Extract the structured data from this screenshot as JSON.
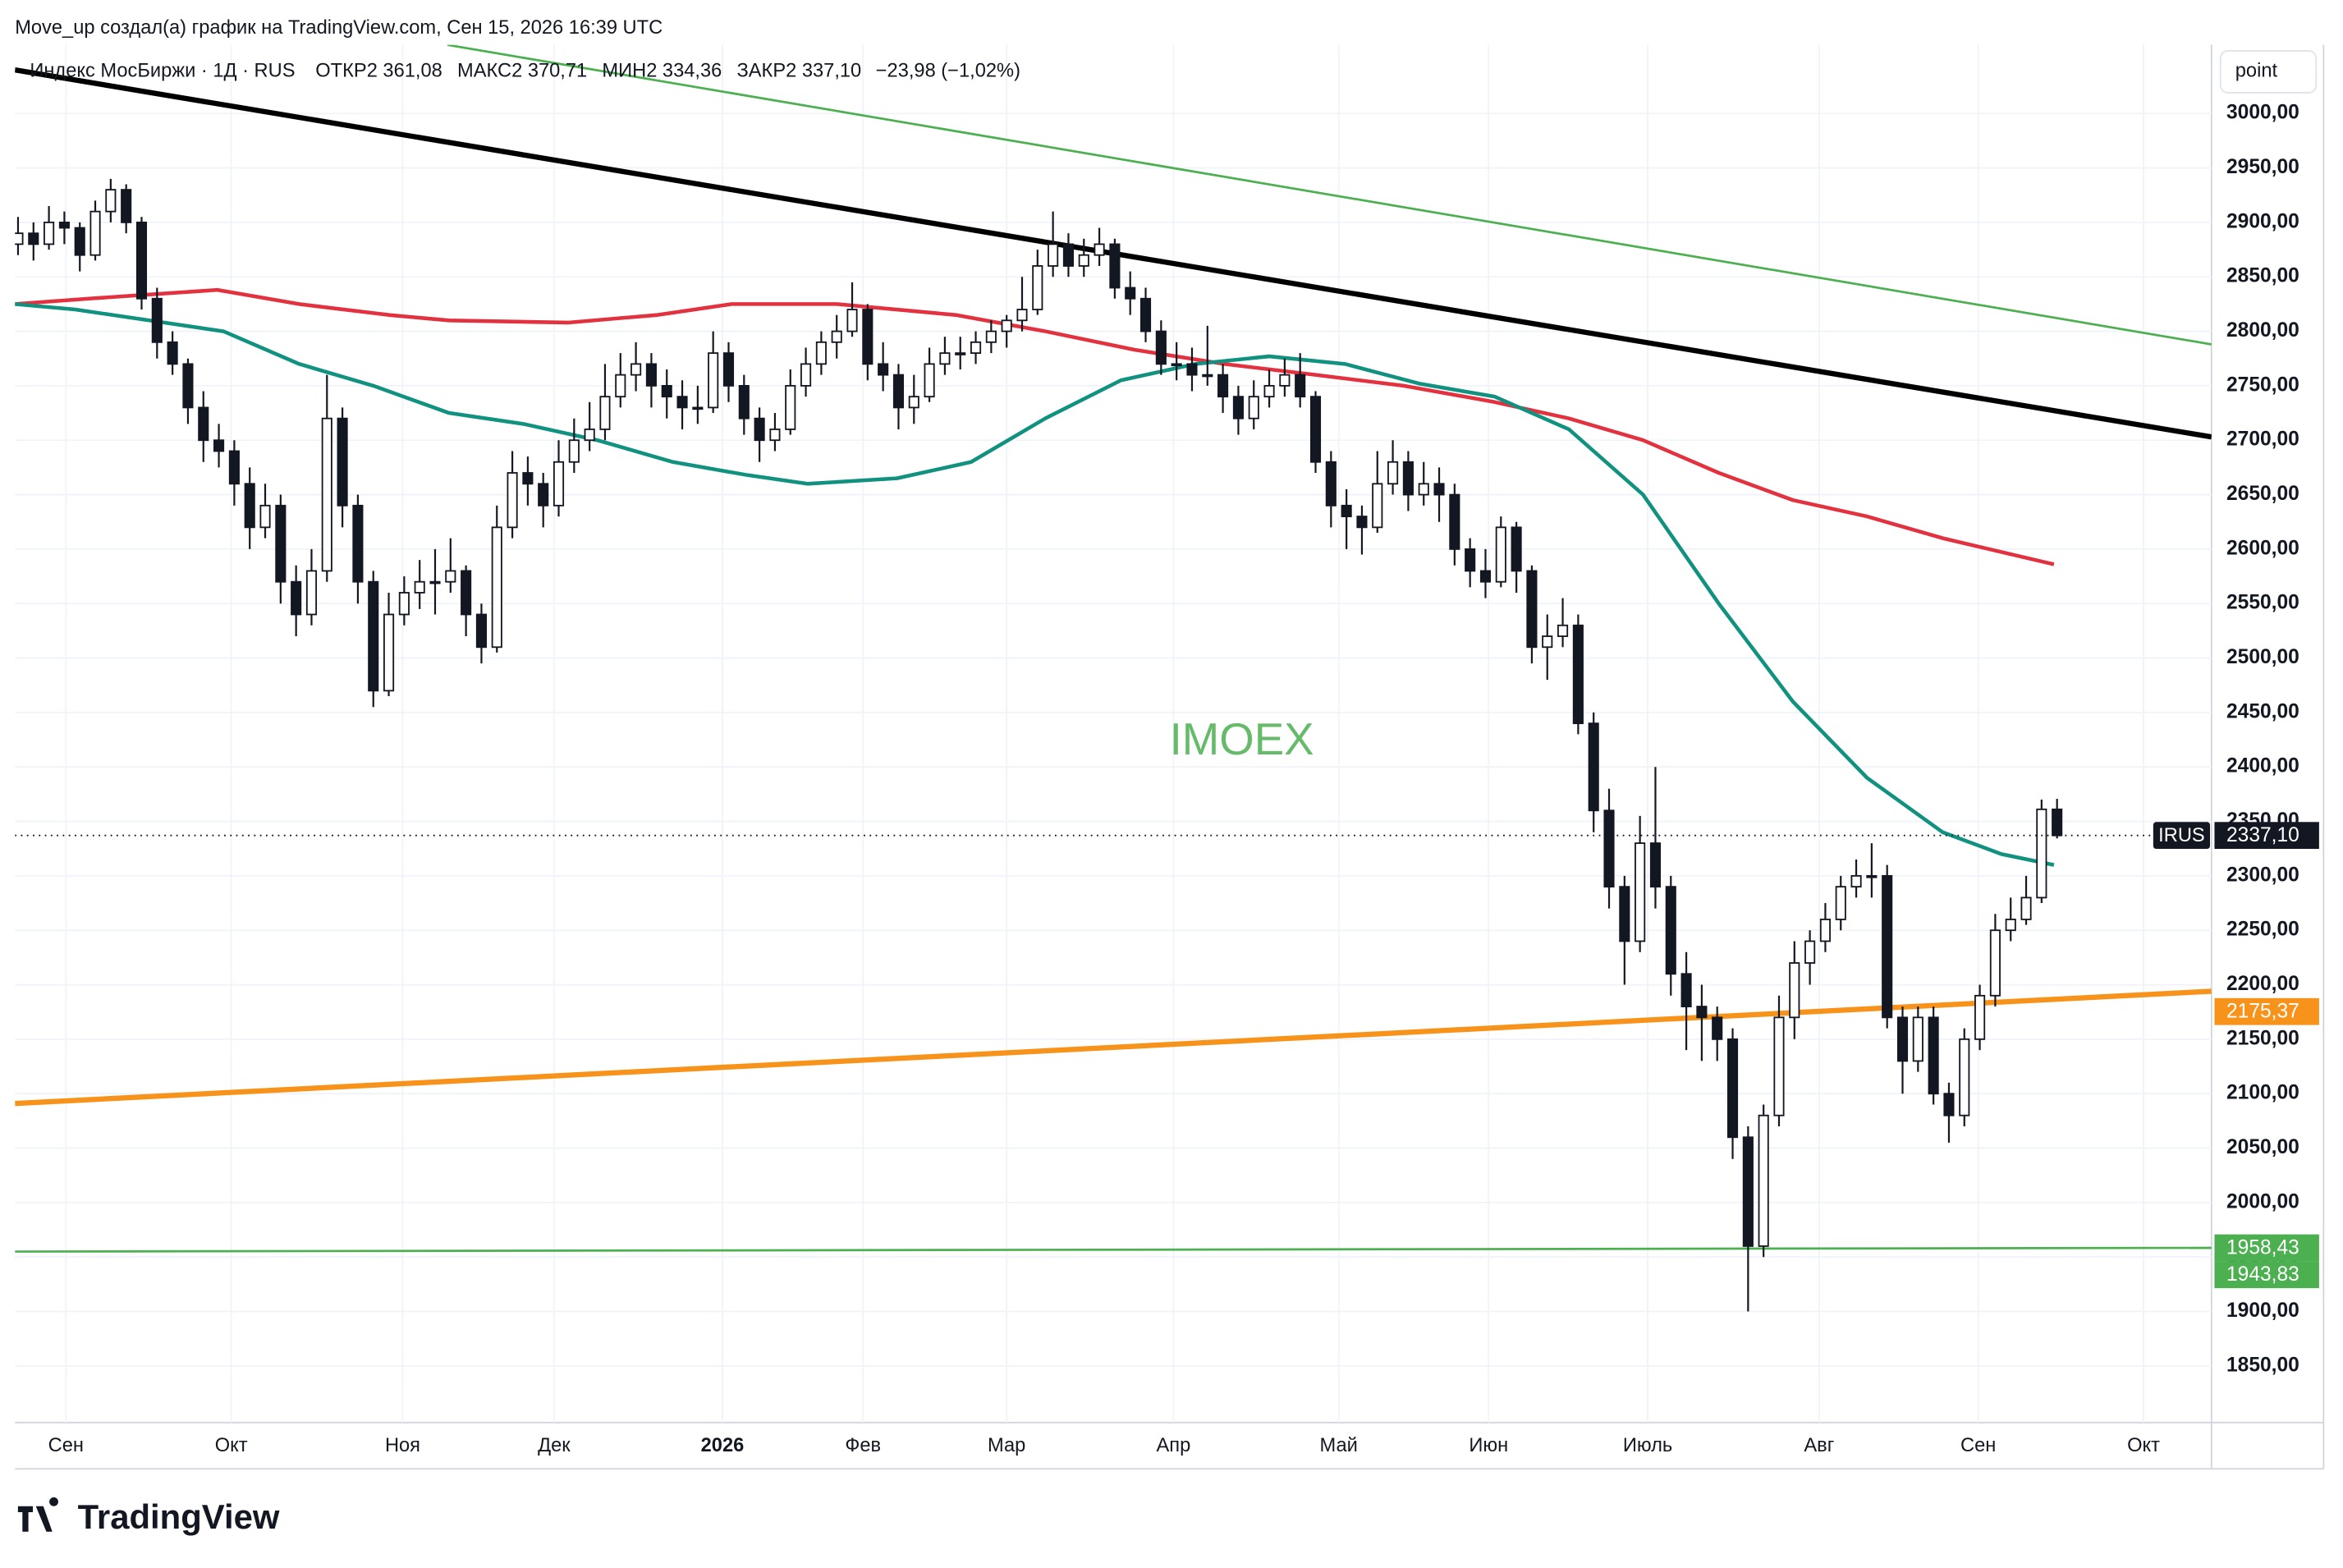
{
  "header": {
    "credit": "Move_up создал(а) график на TradingView.com, Сен 15, 2026 16:39 UTC",
    "symbol": "Индекс МосБиржи · 1Д · RUS",
    "fields": [
      {
        "label": "ОТКР",
        "value": "2 361,08"
      },
      {
        "label": "МАКС",
        "value": "2 370,71"
      },
      {
        "label": "МИН",
        "value": "2 334,36"
      },
      {
        "label": "ЗАКР",
        "value": "2 337,10"
      }
    ],
    "change": "−23,98 (−1,02%)",
    "scale_button": "point",
    "logo": "TradingView"
  },
  "chart_data": {
    "type": "candlestick",
    "watermark": "IMOEX",
    "up_color": "#ffffff",
    "down_color": "#131722",
    "grid": true,
    "xlim": [
      -0.2,
      142
    ],
    "ylim": [
      1798,
      3063
    ],
    "xticks": [
      {
        "value": 3.1,
        "label": "Сен"
      },
      {
        "value": 13.8,
        "label": "Окт"
      },
      {
        "value": 24.9,
        "label": "Ноя"
      },
      {
        "value": 34.7,
        "label": "Дек"
      },
      {
        "value": 45.6,
        "label": "2026"
      },
      {
        "value": 54.7,
        "label": "Фев"
      },
      {
        "value": 64.0,
        "label": "Мар"
      },
      {
        "value": 74.8,
        "label": "Апр"
      },
      {
        "value": 85.5,
        "label": "Май"
      },
      {
        "value": 95.2,
        "label": "Июн"
      },
      {
        "value": 105.5,
        "label": "Июль"
      },
      {
        "value": 116.6,
        "label": "Авг"
      },
      {
        "value": 126.9,
        "label": "Сен"
      },
      {
        "value": 137.6,
        "label": "Окт"
      }
    ],
    "yticks": [
      {
        "value": 1850,
        "label": "1850,00"
      },
      {
        "value": 1900,
        "label": "1900,00"
      },
      {
        "value": 1950,
        "label": "1950,00"
      },
      {
        "value": 2000,
        "label": "2000,00"
      },
      {
        "value": 2050,
        "label": "2050,00"
      },
      {
        "value": 2100,
        "label": "2100,00"
      },
      {
        "value": 2150,
        "label": "2150,00"
      },
      {
        "value": 2200,
        "label": "2200,00"
      },
      {
        "value": 2250,
        "label": "2250,00"
      },
      {
        "value": 2300,
        "label": "2300,00"
      },
      {
        "value": 2350,
        "label": "2350,00"
      },
      {
        "value": 2400,
        "label": "2400,00"
      },
      {
        "value": 2450,
        "label": "2450,00"
      },
      {
        "value": 2500,
        "label": "2500,00"
      },
      {
        "value": 2550,
        "label": "2550,00"
      },
      {
        "value": 2600,
        "label": "2600,00"
      },
      {
        "value": 2650,
        "label": "2650,00"
      },
      {
        "value": 2700,
        "label": "2700,00"
      },
      {
        "value": 2750,
        "label": "2750,00"
      },
      {
        "value": 2800,
        "label": "2800,00"
      },
      {
        "value": 2850,
        "label": "2850,00"
      },
      {
        "value": 2900,
        "label": "2900,00"
      },
      {
        "value": 2950,
        "label": "2950,00"
      },
      {
        "value": 3000,
        "label": "3000,00"
      }
    ],
    "candles": [
      [
        2880,
        2905,
        2870,
        2890
      ],
      [
        2890,
        2900,
        2865,
        2880
      ],
      [
        2880,
        2915,
        2875,
        2900
      ],
      [
        2900,
        2910,
        2880,
        2895
      ],
      [
        2895,
        2900,
        2855,
        2870
      ],
      [
        2870,
        2920,
        2865,
        2910
      ],
      [
        2910,
        2940,
        2900,
        2930
      ],
      [
        2930,
        2935,
        2890,
        2900
      ],
      [
        2900,
        2905,
        2820,
        2830
      ],
      [
        2830,
        2840,
        2775,
        2790
      ],
      [
        2790,
        2800,
        2760,
        2770
      ],
      [
        2770,
        2775,
        2715,
        2730
      ],
      [
        2730,
        2745,
        2680,
        2700
      ],
      [
        2700,
        2715,
        2675,
        2690
      ],
      [
        2690,
        2700,
        2640,
        2660
      ],
      [
        2660,
        2675,
        2600,
        2620
      ],
      [
        2620,
        2660,
        2610,
        2640
      ],
      [
        2640,
        2650,
        2550,
        2570
      ],
      [
        2570,
        2585,
        2520,
        2540
      ],
      [
        2540,
        2600,
        2530,
        2580
      ],
      [
        2580,
        2760,
        2570,
        2720
      ],
      [
        2720,
        2730,
        2620,
        2640
      ],
      [
        2640,
        2650,
        2550,
        2570
      ],
      [
        2570,
        2580,
        2455,
        2470
      ],
      [
        2470,
        2560,
        2465,
        2540
      ],
      [
        2540,
        2575,
        2530,
        2560
      ],
      [
        2560,
        2590,
        2545,
        2570
      ],
      [
        2570,
        2600,
        2540,
        2570
      ],
      [
        2570,
        2610,
        2560,
        2580
      ],
      [
        2580,
        2585,
        2520,
        2540
      ],
      [
        2540,
        2550,
        2495,
        2510
      ],
      [
        2510,
        2640,
        2505,
        2620
      ],
      [
        2620,
        2690,
        2610,
        2670
      ],
      [
        2670,
        2685,
        2640,
        2660
      ],
      [
        2660,
        2670,
        2620,
        2640
      ],
      [
        2640,
        2700,
        2630,
        2680
      ],
      [
        2680,
        2720,
        2670,
        2700
      ],
      [
        2700,
        2735,
        2690,
        2710
      ],
      [
        2710,
        2770,
        2700,
        2740
      ],
      [
        2740,
        2780,
        2730,
        2760
      ],
      [
        2760,
        2790,
        2745,
        2770
      ],
      [
        2770,
        2780,
        2730,
        2750
      ],
      [
        2750,
        2765,
        2720,
        2740
      ],
      [
        2740,
        2755,
        2710,
        2730
      ],
      [
        2730,
        2750,
        2715,
        2730
      ],
      [
        2730,
        2800,
        2725,
        2780
      ],
      [
        2780,
        2790,
        2735,
        2750
      ],
      [
        2750,
        2760,
        2705,
        2720
      ],
      [
        2720,
        2730,
        2680,
        2700
      ],
      [
        2700,
        2725,
        2690,
        2710
      ],
      [
        2710,
        2765,
        2705,
        2750
      ],
      [
        2750,
        2785,
        2740,
        2770
      ],
      [
        2770,
        2800,
        2760,
        2790
      ],
      [
        2790,
        2815,
        2775,
        2800
      ],
      [
        2800,
        2845,
        2795,
        2820
      ],
      [
        2820,
        2825,
        2755,
        2770
      ],
      [
        2770,
        2790,
        2745,
        2760
      ],
      [
        2760,
        2770,
        2710,
        2730
      ],
      [
        2730,
        2760,
        2715,
        2740
      ],
      [
        2740,
        2785,
        2735,
        2770
      ],
      [
        2770,
        2795,
        2760,
        2780
      ],
      [
        2780,
        2795,
        2765,
        2780
      ],
      [
        2780,
        2800,
        2770,
        2790
      ],
      [
        2790,
        2810,
        2780,
        2800
      ],
      [
        2800,
        2815,
        2785,
        2810
      ],
      [
        2810,
        2850,
        2800,
        2820
      ],
      [
        2820,
        2875,
        2815,
        2860
      ],
      [
        2860,
        2910,
        2850,
        2880
      ],
      [
        2880,
        2890,
        2850,
        2860
      ],
      [
        2860,
        2885,
        2850,
        2870
      ],
      [
        2870,
        2895,
        2860,
        2880
      ],
      [
        2880,
        2885,
        2830,
        2840
      ],
      [
        2840,
        2855,
        2815,
        2830
      ],
      [
        2830,
        2840,
        2790,
        2800
      ],
      [
        2800,
        2810,
        2760,
        2770
      ],
      [
        2770,
        2790,
        2755,
        2770
      ],
      [
        2770,
        2785,
        2745,
        2760
      ],
      [
        2760,
        2805,
        2750,
        2760
      ],
      [
        2760,
        2770,
        2725,
        2740
      ],
      [
        2740,
        2750,
        2705,
        2720
      ],
      [
        2720,
        2755,
        2710,
        2740
      ],
      [
        2740,
        2765,
        2730,
        2750
      ],
      [
        2750,
        2775,
        2740,
        2760
      ],
      [
        2760,
        2780,
        2730,
        2740
      ],
      [
        2740,
        2745,
        2670,
        2680
      ],
      [
        2680,
        2690,
        2620,
        2640
      ],
      [
        2640,
        2655,
        2600,
        2630
      ],
      [
        2630,
        2640,
        2595,
        2620
      ],
      [
        2620,
        2690,
        2615,
        2660
      ],
      [
        2660,
        2700,
        2650,
        2680
      ],
      [
        2680,
        2690,
        2635,
        2650
      ],
      [
        2650,
        2680,
        2640,
        2660
      ],
      [
        2660,
        2675,
        2625,
        2650
      ],
      [
        2650,
        2660,
        2585,
        2600
      ],
      [
        2600,
        2610,
        2565,
        2580
      ],
      [
        2580,
        2600,
        2555,
        2570
      ],
      [
        2570,
        2630,
        2565,
        2620
      ],
      [
        2620,
        2625,
        2560,
        2580
      ],
      [
        2580,
        2585,
        2495,
        2510
      ],
      [
        2510,
        2540,
        2480,
        2520
      ],
      [
        2520,
        2555,
        2510,
        2530
      ],
      [
        2530,
        2540,
        2430,
        2440
      ],
      [
        2440,
        2450,
        2340,
        2360
      ],
      [
        2360,
        2380,
        2270,
        2290
      ],
      [
        2290,
        2300,
        2200,
        2240
      ],
      [
        2240,
        2355,
        2230,
        2330
      ],
      [
        2330,
        2400,
        2270,
        2290
      ],
      [
        2290,
        2300,
        2190,
        2210
      ],
      [
        2210,
        2230,
        2140,
        2180
      ],
      [
        2180,
        2200,
        2130,
        2170
      ],
      [
        2170,
        2180,
        2130,
        2150
      ],
      [
        2150,
        2160,
        2040,
        2060
      ],
      [
        2060,
        2070,
        1900,
        1960
      ],
      [
        1960,
        2090,
        1950,
        2080
      ],
      [
        2080,
        2190,
        2070,
        2170
      ],
      [
        2170,
        2240,
        2150,
        2220
      ],
      [
        2220,
        2250,
        2200,
        2240
      ],
      [
        2240,
        2275,
        2230,
        2260
      ],
      [
        2260,
        2300,
        2250,
        2290
      ],
      [
        2290,
        2315,
        2280,
        2300
      ],
      [
        2300,
        2330,
        2280,
        2300
      ],
      [
        2300,
        2310,
        2160,
        2170
      ],
      [
        2170,
        2180,
        2100,
        2130
      ],
      [
        2130,
        2180,
        2120,
        2170
      ],
      [
        2170,
        2180,
        2090,
        2100
      ],
      [
        2100,
        2110,
        2055,
        2080
      ],
      [
        2080,
        2160,
        2070,
        2150
      ],
      [
        2150,
        2200,
        2140,
        2190
      ],
      [
        2190,
        2265,
        2180,
        2250
      ],
      [
        2250,
        2280,
        2240,
        2260
      ],
      [
        2260,
        2300,
        2255,
        2280
      ],
      [
        2280,
        2370,
        2275,
        2361.08
      ],
      [
        2361.08,
        2370.71,
        2334.36,
        2337.1
      ]
    ],
    "lines": [
      {
        "color": "#e2323f",
        "width": 2.5,
        "x": [
          -0.2,
          4.6,
          12.9,
          18.2,
          24.0,
          27.9,
          35.6,
          41.4,
          46.2,
          53.0,
          60.7,
          66.5,
          72.3,
          78.1,
          84.0,
          89.7,
          95.6,
          100.4,
          105.2,
          110.1,
          114.9,
          119.7,
          124.6,
          131.8
        ],
        "values": [
          2825,
          2830,
          2838,
          2825,
          2815,
          2810,
          2808,
          2815,
          2825,
          2825,
          2815,
          2800,
          2783,
          2770,
          2760,
          2750,
          2735,
          2720,
          2700,
          2670,
          2645,
          2630,
          2610,
          2586
        ]
      },
      {
        "color": "#11917f",
        "width": 2.5,
        "x": [
          -0.2,
          3.7,
          8.5,
          13.3,
          18.2,
          23.0,
          27.9,
          32.7,
          37.5,
          42.4,
          47.2,
          51.1,
          56.9,
          61.7,
          66.5,
          71.4,
          76.2,
          81.0,
          85.9,
          90.7,
          95.6,
          100.4,
          105.2,
          110.1,
          114.9,
          119.7,
          124.6,
          128.4,
          131.8
        ],
        "values": [
          2825,
          2820,
          2810,
          2800,
          2770,
          2750,
          2725,
          2715,
          2700,
          2680,
          2668,
          2660,
          2665,
          2680,
          2720,
          2755,
          2770,
          2777,
          2770,
          2752,
          2740,
          2710,
          2650,
          2550,
          2460,
          2390,
          2340,
          2320,
          2310
        ]
      },
      {
        "color": "#000000",
        "width": 3.5,
        "x": [
          -0.2,
          142
        ],
        "values": [
          3040,
          2703
        ]
      },
      {
        "color": "#4caf50",
        "width": 1.5,
        "x": [
          27.8,
          142
        ],
        "values": [
          3063,
          2788
        ]
      },
      {
        "color": "#f7931a",
        "width": 3.5,
        "x": [
          -0.2,
          142
        ],
        "values": [
          2091,
          2194
        ]
      },
      {
        "color": "#4caf50",
        "width": 1.5,
        "x": [
          -0.2,
          142
        ],
        "values": [
          1955,
          1958.43
        ]
      }
    ],
    "price_labels": [
      {
        "value": 2337.1,
        "label": "2337,10",
        "tag": "IRUS",
        "color": "#131722"
      },
      {
        "value": 2175.37,
        "label": "2175,37",
        "color": "#f7931a"
      },
      {
        "value": 1958.43,
        "label": "1958,43",
        "color": "#4caf50"
      },
      {
        "value": 1943.83,
        "label": "1943,83",
        "color": "#4caf50"
      }
    ]
  }
}
